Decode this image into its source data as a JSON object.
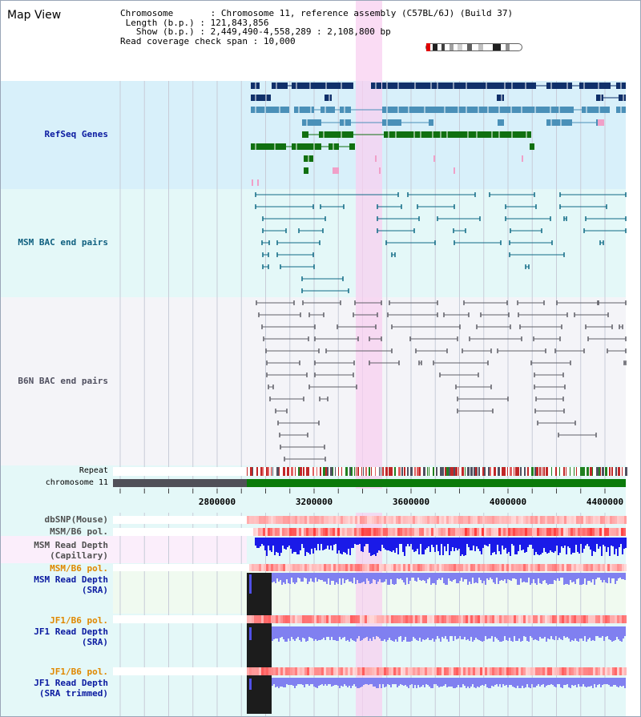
{
  "window": {
    "title": "Map View"
  },
  "info": {
    "rows": [
      {
        "key": "Chromosome",
        "value": "Chromosome 11, reference assembly (C57BL/6J) (Build 37)"
      },
      {
        "key": "Length (b.p.)",
        "value": "121,843,856"
      },
      {
        "key": "Show (b.p.)",
        "value": "2,449,490-4,558,289 : 2,108,800 bp"
      },
      {
        "key": "Read coverage check span",
        "value": "10,000"
      }
    ]
  },
  "tracks": {
    "refseq": "RefSeq Genes",
    "msm_bac": "MSM BAC end pairs",
    "b6n_bac": "B6N BAC end pairs",
    "repeat": "Repeat",
    "chrom": "chromosome 11",
    "dbsnp": "dbSNP(Mouse)",
    "msm_b6_pol_1": "MSM/B6 pol.",
    "msm_depth_cap_1": "MSM Read Depth",
    "msm_depth_cap_2": "(Capillary)",
    "msm_b6_pol_2": "MSM/B6 pol.",
    "msm_depth_sra_1": "MSM Read Depth",
    "msm_depth_sra_2": "(SRA)",
    "jf1_b6_pol_1": "JF1/B6 pol.",
    "jf1_depth_sra_1": "JF1 Read Depth",
    "jf1_depth_sra_2": "(SRA)",
    "jf1_b6_pol_2": "JF1/B6 pol.",
    "jf1_depth_trim_1": "JF1 Read Depth",
    "jf1_depth_trim_2": "(SRA trimmed)"
  },
  "axis": {
    "ticks": [
      "2800000",
      "3200000",
      "3600000",
      "4000000",
      "4400000"
    ]
  },
  "colors": {
    "refseq_bg": "#d8f0fa",
    "msm_bac_bg": "#e4f8f8",
    "b6n_bac_bg": "#f4f4f8",
    "highlight": "#f8d0f0",
    "gene_dark": "#10306a",
    "gene_mid": "#4a90b8",
    "gene_green": "#107010",
    "gene_pink": "#f0a0c8",
    "label_blue": "#0a1aa0",
    "label_teal": "#106080",
    "label_orange": "#e08800",
    "depth_blue": "#1a1ae8",
    "depth_light": "#8080f0"
  }
}
